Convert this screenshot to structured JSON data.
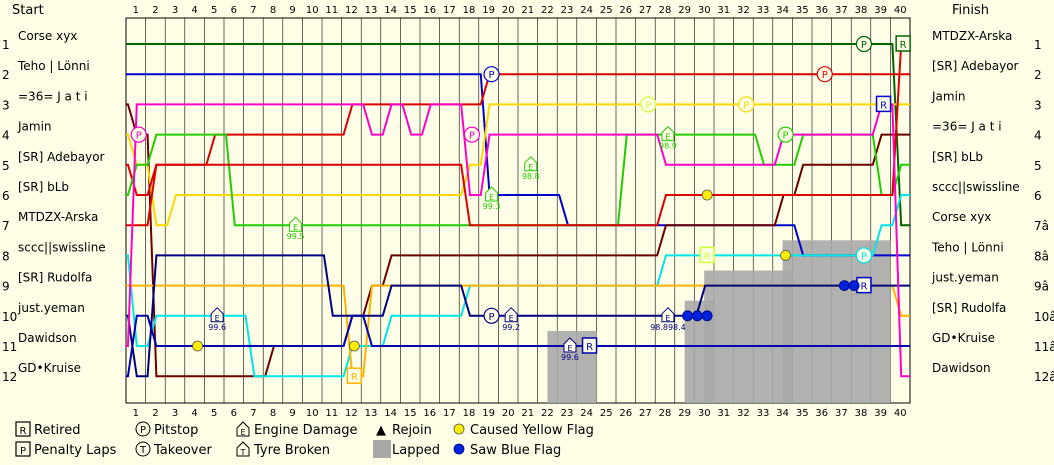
{
  "chart_data": {
    "type": "line",
    "title": "",
    "header_start": "Start",
    "header_finish": "Finish",
    "laps": 40,
    "positions": 12,
    "start_order": [
      "Corse xyx",
      "Teho | Lönni",
      "=36= J a t i",
      "Jamin",
      "[SR] Adebayor",
      "[SR] bLb",
      "MTDZX-Arska",
      "sccc||swissline",
      "[SR] Rudolfa",
      "just.yeman",
      "Dawidson",
      "GD•Kruise"
    ],
    "finish_order": [
      "MTDZX-Arska",
      "[SR] Adebayor",
      "Jamin",
      "=36= J a t i",
      "[SR] bLb",
      "sccc||swissline",
      "Corse xyx",
      "Teho | Lönni",
      "just.yeman",
      "[SR] Rudolfa",
      "GD•Kruise",
      "Dawidson"
    ],
    "finish_position_labels": [
      "1",
      "2",
      "3",
      "4",
      "5",
      "6",
      "7â",
      "8â",
      "9â",
      "10â",
      "11â",
      "12â"
    ],
    "start_position_labels": [
      "1",
      "2",
      "3",
      "4",
      "5",
      "6",
      "7",
      "8",
      "9",
      "10",
      "11",
      "12"
    ],
    "series": [
      {
        "name": "Corse xyx",
        "color": "#006400",
        "positions": [
          1,
          1,
          1,
          1,
          1,
          1,
          1,
          1,
          1,
          1,
          1,
          1,
          1,
          1,
          1,
          1,
          1,
          1,
          1,
          1,
          1,
          1,
          1,
          1,
          1,
          1,
          1,
          1,
          1,
          1,
          1,
          1,
          1,
          1,
          1,
          1,
          1,
          1,
          1,
          1,
          7
        ]
      },
      {
        "name": "Teho | Lönni",
        "color": "#0000cd",
        "positions": [
          2,
          2,
          2,
          2,
          2,
          2,
          2,
          2,
          2,
          2,
          2,
          2,
          2,
          2,
          2,
          2,
          2,
          2,
          2,
          6,
          6,
          6,
          6,
          7,
          7,
          7,
          7,
          7,
          7,
          7,
          7,
          7,
          7,
          7,
          7,
          8,
          8,
          8,
          8,
          8,
          8
        ]
      },
      {
        "name": "=36= J a t i",
        "color": "#6b0000",
        "positions": [
          3,
          4,
          12,
          12,
          12,
          12,
          12,
          12,
          11,
          11,
          11,
          11,
          10,
          9,
          8,
          8,
          8,
          8,
          8,
          8,
          8,
          8,
          8,
          8,
          8,
          8,
          8,
          8,
          7,
          7,
          7,
          7,
          7,
          7,
          6,
          5,
          5,
          5,
          5,
          4,
          4
        ]
      },
      {
        "name": "Jamin",
        "color": "#ffd700",
        "positions": [
          4,
          5,
          7,
          6,
          6,
          6,
          6,
          6,
          6,
          6,
          6,
          6,
          6,
          6,
          6,
          6,
          6,
          6,
          5,
          3,
          3,
          3,
          3,
          3,
          3,
          3,
          3,
          3,
          3,
          3,
          3,
          3,
          3,
          3,
          3,
          3,
          3,
          3,
          3,
          3,
          3
        ]
      },
      {
        "name": "[SR] Adebayor",
        "color": "#dd0000",
        "positions": [
          5,
          6,
          5,
          5,
          5,
          4,
          4,
          4,
          4,
          4,
          4,
          4,
          3,
          3,
          3,
          3,
          3,
          3,
          3,
          2,
          2,
          2,
          2,
          2,
          2,
          2,
          2,
          2,
          2,
          2,
          2,
          2,
          2,
          2,
          2,
          2,
          2,
          2,
          2,
          2,
          2
        ]
      },
      {
        "name": "[SR] bLb",
        "color": "#22cc00",
        "positions": [
          6,
          5,
          4,
          4,
          4,
          4,
          7,
          7,
          7,
          7,
          7,
          7,
          7,
          7,
          7,
          7,
          7,
          7,
          7,
          7,
          7,
          7,
          7,
          7,
          7,
          7,
          4,
          4,
          4,
          4,
          4,
          4,
          4,
          5,
          5,
          4,
          4,
          4,
          4,
          6,
          5
        ]
      },
      {
        "name": "MTDZX-Arska",
        "color": "#dd0000",
        "positions": [
          7,
          7,
          5,
          5,
          5,
          5,
          5,
          5,
          5,
          5,
          5,
          5,
          5,
          5,
          5,
          5,
          5,
          5,
          7,
          7,
          7,
          7,
          7,
          7,
          7,
          7,
          7,
          7,
          6,
          6,
          6,
          6,
          6,
          6,
          6,
          6,
          6,
          6,
          6,
          6,
          1
        ]
      },
      {
        "name": "sccc||swissline",
        "color": "#00e5e5",
        "positions": [
          8,
          11,
          10,
          10,
          10,
          10,
          10,
          12,
          12,
          12,
          12,
          12,
          11,
          11,
          10,
          10,
          10,
          10,
          9,
          9,
          9,
          9,
          9,
          9,
          9,
          9,
          9,
          9,
          8,
          8,
          8,
          8,
          8,
          8,
          8,
          8,
          8,
          8,
          8,
          7,
          6
        ]
      },
      {
        "name": "[SR] Rudolfa",
        "color": "#ffb300",
        "positions": [
          9,
          9,
          9,
          9,
          9,
          9,
          9,
          9,
          9,
          9,
          9,
          9,
          12,
          9,
          9,
          9,
          9,
          9,
          9,
          9,
          9,
          9,
          9,
          9,
          9,
          9,
          9,
          9,
          9,
          9,
          9,
          9,
          9,
          9,
          9,
          9,
          9,
          9,
          9,
          9,
          10
        ]
      },
      {
        "name": "just.yeman",
        "color": "#000080",
        "positions": [
          10,
          12,
          8,
          8,
          8,
          8,
          8,
          8,
          8,
          8,
          8,
          10,
          10,
          10,
          9,
          9,
          9,
          9,
          10,
          10,
          10,
          10,
          10,
          10,
          10,
          10,
          10,
          10,
          10,
          10,
          9,
          9,
          9,
          9,
          9,
          9,
          9,
          9,
          9,
          9,
          9
        ]
      },
      {
        "name": "Dawidson",
        "color": "#ff00cc",
        "positions": [
          11,
          3,
          3,
          3,
          3,
          3,
          3,
          3,
          3,
          3,
          3,
          3,
          3,
          4,
          3,
          4,
          3,
          3,
          6,
          4,
          4,
          4,
          4,
          4,
          4,
          4,
          4,
          4,
          5,
          5,
          5,
          5,
          5,
          5,
          4,
          4,
          4,
          4,
          4,
          3,
          12
        ]
      },
      {
        "name": "GD•Kruise",
        "color": "#0000ad",
        "positions": [
          12,
          10,
          11,
          11,
          11,
          11,
          11,
          11,
          11,
          11,
          11,
          11,
          10,
          11,
          11,
          11,
          11,
          11,
          11,
          11,
          11,
          11,
          11,
          11,
          11,
          11,
          11,
          11,
          11,
          11,
          11,
          11,
          11,
          11,
          11,
          11,
          11,
          11,
          11,
          11,
          11
        ]
      }
    ],
    "events": [
      {
        "type": "pitstop",
        "lap": 1,
        "position": 4,
        "color": "#ff00cc"
      },
      {
        "type": "pitstop",
        "lap": 18,
        "position": 4,
        "color": "#ff00cc"
      },
      {
        "type": "pitstop",
        "lap": 19,
        "position": 2,
        "color": "#0000cd"
      },
      {
        "type": "pitstop",
        "lap": 27,
        "position": 3,
        "color": "#ccff33"
      },
      {
        "type": "pitstop",
        "lap": 32,
        "position": 3,
        "color": "#ffd700"
      },
      {
        "type": "pitstop",
        "lap": 34,
        "position": 4,
        "color": "#22cc00"
      },
      {
        "type": "pitstop",
        "lap": 36,
        "position": 2,
        "color": "#dd0000"
      },
      {
        "type": "pitstop",
        "lap": 38,
        "position": 1,
        "color": "#006400"
      },
      {
        "type": "pitstop",
        "lap": 38,
        "position": 8,
        "color": "#00e5e5"
      },
      {
        "type": "pitstop",
        "lap": 19,
        "position": 10,
        "color": "#000080"
      },
      {
        "type": "retired",
        "lap": 40,
        "position": 1,
        "color": "#006400"
      },
      {
        "type": "retired",
        "lap": 39,
        "position": 3,
        "color": "#0000cd"
      },
      {
        "type": "retired",
        "lap": 12,
        "position": 12,
        "color": "#ffb300"
      },
      {
        "type": "retired",
        "lap": 24,
        "position": 11,
        "color": "#0000ad"
      },
      {
        "type": "retired",
        "lap": 38,
        "position": 9,
        "color": "#0000cd"
      },
      {
        "type": "retired",
        "lap": 30,
        "position": 8,
        "color": "#ccff33"
      },
      {
        "type": "engine",
        "lap": 9,
        "position": 7,
        "color": "#22cc00",
        "value": "99.5"
      },
      {
        "type": "engine",
        "lap": 5,
        "position": 10,
        "color": "#000080",
        "value": "99.6"
      },
      {
        "type": "engine",
        "lap": 19,
        "position": 6,
        "color": "#22cc00",
        "value": "99.3"
      },
      {
        "type": "engine",
        "lap": 20,
        "position": 10,
        "color": "#000080",
        "value": "99.2"
      },
      {
        "type": "engine",
        "lap": 21,
        "position": 5,
        "color": "#22cc00",
        "value": "98.8"
      },
      {
        "type": "engine",
        "lap": 28,
        "position": 4,
        "color": "#22cc00",
        "value": "98.9"
      },
      {
        "type": "engine",
        "lap": 28,
        "position": 10,
        "color": "#000080",
        "value": "98.898.4"
      },
      {
        "type": "engine",
        "lap": 23,
        "position": 11,
        "color": "#000080",
        "value": "99.6"
      },
      {
        "type": "yellow",
        "lap": 4,
        "position": 11
      },
      {
        "type": "yellow",
        "lap": 12,
        "position": 11
      },
      {
        "type": "yellow",
        "lap": 30,
        "position": 6
      },
      {
        "type": "yellow",
        "lap": 34,
        "position": 8
      },
      {
        "type": "blue",
        "lap": 29,
        "position": 10
      },
      {
        "type": "blue",
        "lap": 29.5,
        "position": 10
      },
      {
        "type": "blue",
        "lap": 30,
        "position": 10
      },
      {
        "type": "blue",
        "lap": 37,
        "position": 9
      },
      {
        "type": "blue",
        "lap": 37.5,
        "position": 9
      }
    ],
    "lapped": [
      {
        "from": 22,
        "to": 24,
        "from_position": 10.5
      },
      {
        "from": 29,
        "to": 30,
        "from_position": 9.5
      },
      {
        "from": 30,
        "to": 34,
        "from_position": 8.5
      },
      {
        "from": 34,
        "to": 39,
        "from_position": 7.5
      }
    ],
    "legend": [
      {
        "key": "retired",
        "label": "Retired",
        "glyph": "R"
      },
      {
        "key": "penalty",
        "label": "Penalty Laps",
        "glyph": "P"
      },
      {
        "key": "pitstop",
        "label": "Pitstop",
        "glyph": "P"
      },
      {
        "key": "takeover",
        "label": "Takeover",
        "glyph": "T"
      },
      {
        "key": "engine",
        "label": "Engine Damage",
        "glyph": "E"
      },
      {
        "key": "tyre",
        "label": "Tyre Broken",
        "glyph": "T"
      },
      {
        "key": "rejoin",
        "label": "Rejoin",
        "glyph": "▲"
      },
      {
        "key": "lapped",
        "label": "Lapped",
        "glyph": ""
      },
      {
        "key": "yellow",
        "label": "Caused Yellow Flag",
        "glyph": ""
      },
      {
        "key": "blue",
        "label": "Saw Blue Flag",
        "glyph": ""
      }
    ]
  }
}
